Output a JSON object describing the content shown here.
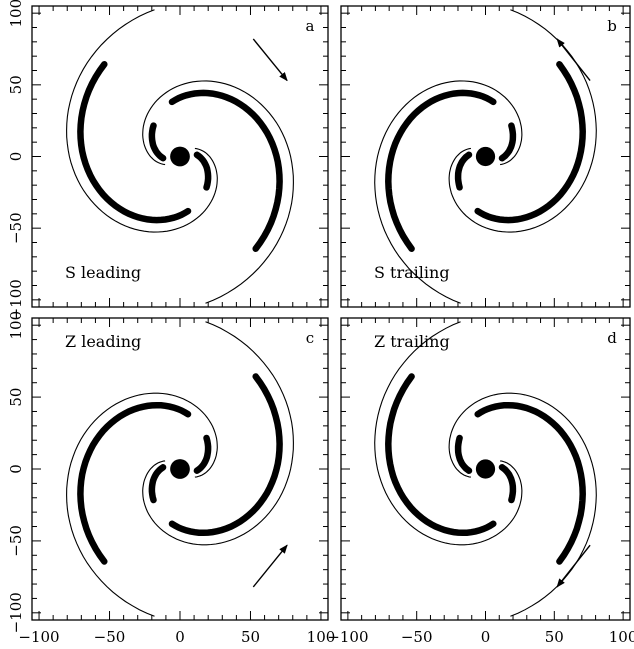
{
  "figure": {
    "x_ticks": [
      "−100",
      "−50",
      "0",
      "50",
      "100"
    ],
    "y_ticks": [
      "100",
      "50",
      "0",
      "−50",
      "−100"
    ],
    "tick_values": [
      -100,
      -50,
      0,
      50,
      100
    ],
    "axis_range": [
      -105,
      105
    ],
    "bulge_radius": 7,
    "panels": [
      {
        "id": "a",
        "letter": "a",
        "label": "S leading",
        "orientation": "S",
        "sense": "leading",
        "label_position": "bottom-left",
        "arrow": {
          "from": [
            52,
            82
          ],
          "to": [
            76,
            53
          ]
        }
      },
      {
        "id": "b",
        "letter": "b",
        "label": "S trailing",
        "orientation": "S",
        "sense": "trailing",
        "label_position": "bottom-left",
        "arrow": {
          "from": [
            76,
            53
          ],
          "to": [
            52,
            82
          ]
        }
      },
      {
        "id": "c",
        "letter": "c",
        "label": "Z leading",
        "orientation": "Z",
        "sense": "leading",
        "label_position": "top-left",
        "arrow": {
          "from": [
            52,
            -82
          ],
          "to": [
            76,
            -53
          ]
        }
      },
      {
        "id": "d",
        "letter": "d",
        "label": "Z trailing",
        "orientation": "Z",
        "sense": "trailing",
        "label_position": "top-left",
        "arrow": {
          "from": [
            76,
            -53
          ],
          "to": [
            52,
            -82
          ]
        }
      }
    ]
  }
}
